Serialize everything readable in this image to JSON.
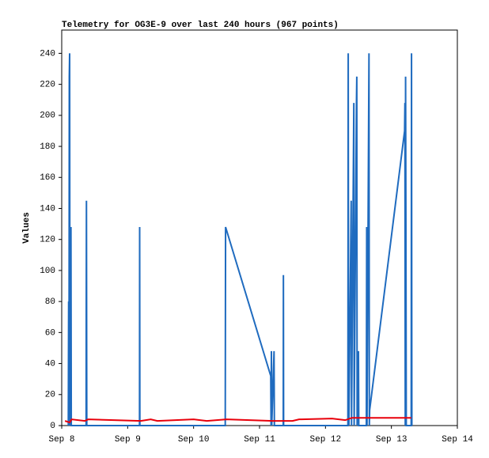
{
  "chart_data": {
    "type": "line",
    "title": "Telemetry for OG3E-9 over last 240 hours (967 points)",
    "y_label": "Values",
    "xlim": [
      8,
      14
    ],
    "xticks": [
      {
        "value": 8,
        "label": "Sep 8"
      },
      {
        "value": 9,
        "label": "Sep 9"
      },
      {
        "value": 10,
        "label": "Sep 10"
      },
      {
        "value": 11,
        "label": "Sep 11"
      },
      {
        "value": 12,
        "label": "Sep 12"
      },
      {
        "value": 13,
        "label": "Sep 13"
      },
      {
        "value": 14,
        "label": "Sep 14"
      }
    ],
    "ylim": [
      0,
      255
    ],
    "yticks": [
      0,
      20,
      40,
      60,
      80,
      100,
      120,
      140,
      160,
      180,
      200,
      220,
      240
    ],
    "grid": false,
    "series": [
      {
        "color": "#1f6bbf",
        "x": [
          8.1,
          8.105,
          8.11,
          8.115,
          8.12,
          8.125,
          8.14,
          8.145,
          8.37,
          8.372,
          8.375,
          8.38,
          9.18,
          9.182,
          9.185,
          10.48,
          10.485,
          11.17,
          11.175,
          11.18,
          11.185,
          11.22,
          11.225,
          11.36,
          11.362,
          11.365,
          12.34,
          12.345,
          12.35,
          12.355,
          12.39,
          12.395,
          12.43,
          12.435,
          12.47,
          12.475,
          12.48,
          12.5,
          12.505,
          12.62,
          12.625,
          12.63,
          12.66,
          12.665,
          12.67,
          13.2,
          13.205,
          13.21,
          13.215,
          13.22,
          13.225,
          13.3,
          13.305,
          13.31
        ],
        "values": [
          0,
          80,
          0,
          225,
          240,
          0,
          128,
          0,
          0,
          73,
          145,
          0,
          0,
          128,
          0,
          0,
          128,
          32,
          0,
          48,
          0,
          48,
          0,
          0,
          97,
          0,
          0,
          240,
          48,
          0,
          145,
          0,
          208,
          0,
          208,
          225,
          0,
          48,
          0,
          0,
          128,
          0,
          240,
          0,
          10,
          190,
          208,
          0,
          225,
          128,
          0,
          0,
          240,
          0
        ]
      },
      {
        "color": "#e8000b",
        "x": [
          8.05,
          8.12,
          8.15,
          8.35,
          8.4,
          9.2,
          9.35,
          9.45,
          10.0,
          10.2,
          10.5,
          11.2,
          11.5,
          11.6,
          12.1,
          12.3,
          12.4,
          13.3
        ],
        "values": [
          3,
          2,
          4,
          3,
          4,
          3,
          4,
          3,
          4,
          3,
          4,
          3,
          3,
          4,
          4.5,
          3.5,
          5,
          5
        ]
      }
    ]
  }
}
